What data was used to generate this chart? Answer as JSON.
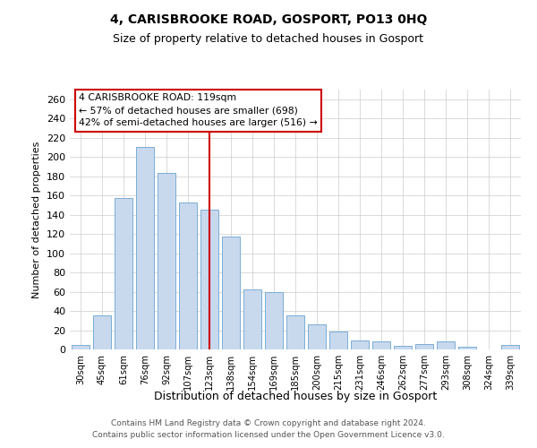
{
  "title": "4, CARISBROOKE ROAD, GOSPORT, PO13 0HQ",
  "subtitle": "Size of property relative to detached houses in Gosport",
  "xlabel": "Distribution of detached houses by size in Gosport",
  "ylabel": "Number of detached properties",
  "bar_labels": [
    "30sqm",
    "45sqm",
    "61sqm",
    "76sqm",
    "92sqm",
    "107sqm",
    "123sqm",
    "138sqm",
    "154sqm",
    "169sqm",
    "185sqm",
    "200sqm",
    "215sqm",
    "231sqm",
    "246sqm",
    "262sqm",
    "277sqm",
    "293sqm",
    "308sqm",
    "324sqm",
    "339sqm"
  ],
  "bar_values": [
    5,
    35,
    157,
    210,
    183,
    153,
    145,
    117,
    62,
    60,
    35,
    26,
    19,
    9,
    8,
    4,
    6,
    8,
    3,
    0,
    5
  ],
  "bar_color": "#c8d9ee",
  "bar_edge_color": "#7badd4",
  "highlight_index": 6,
  "highlight_line_color": "#cc0000",
  "annotation_title": "4 CARISBROOKE ROAD: 119sqm",
  "annotation_line1": "← 57% of detached houses are smaller (698)",
  "annotation_line2": "42% of semi-detached houses are larger (516) →",
  "annotation_box_color": "#ffffff",
  "annotation_box_edge": "#cc0000",
  "ylim": [
    0,
    270
  ],
  "yticks": [
    0,
    20,
    40,
    60,
    80,
    100,
    120,
    140,
    160,
    180,
    200,
    220,
    240,
    260
  ],
  "footer_line1": "Contains HM Land Registry data © Crown copyright and database right 2024.",
  "footer_line2": "Contains public sector information licensed under the Open Government Licence v3.0.",
  "bg_color": "#ffffff",
  "grid_color": "#cccccc"
}
